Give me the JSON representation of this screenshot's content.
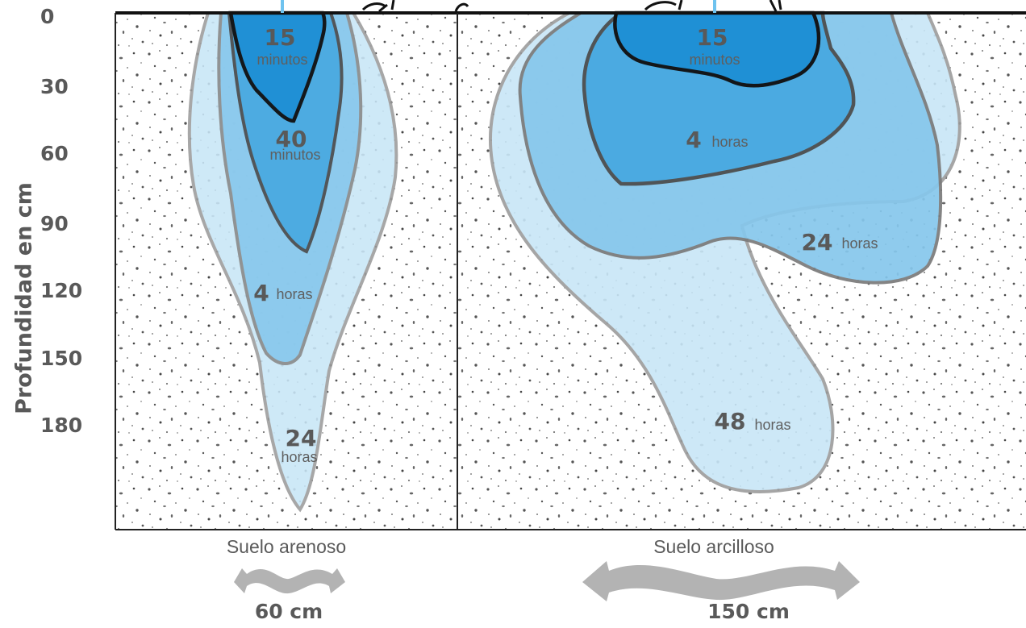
{
  "y_axis": {
    "title": "Profundidad en cm",
    "ticks": [
      "0",
      "30",
      "60",
      "90",
      "120",
      "150",
      "180"
    ]
  },
  "soils": [
    {
      "name": "Suelo arenoso",
      "width": "60 cm",
      "contours": [
        {
          "value": "15",
          "unit": "minutos"
        },
        {
          "value": "40",
          "unit": "minutos"
        },
        {
          "value": "4",
          "unit": "horas"
        },
        {
          "value": "24",
          "unit": "horas"
        }
      ]
    },
    {
      "name": "Suelo arcilloso",
      "width": "150 cm",
      "contours": [
        {
          "value": "15",
          "unit": "minutos"
        },
        {
          "value": "4",
          "unit": "horas"
        },
        {
          "value": "24",
          "unit": "horas"
        },
        {
          "value": "48",
          "unit": "horas"
        }
      ]
    }
  ],
  "colors": {
    "water_darkest": "#1e8fd5",
    "water_dark": "#48a9e1",
    "water_mid": "#86c7ec",
    "water_light": "#c8e6f7",
    "text": "#595959",
    "arrow": "#b3b3b3"
  }
}
